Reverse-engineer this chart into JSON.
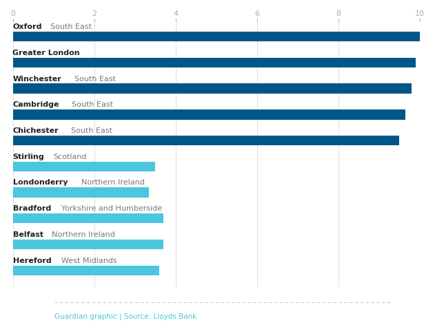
{
  "categories": [
    [
      "Oxford",
      "South East"
    ],
    [
      "Greater London",
      ""
    ],
    [
      "Winchester",
      "South East"
    ],
    [
      "Cambridge",
      "South East"
    ],
    [
      "Chichester",
      "South East"
    ],
    [
      "Stirling",
      "Scotland"
    ],
    [
      "Londonderry",
      "Northern Ireland"
    ],
    [
      "Bradford",
      "Yorkshire and Humberside"
    ],
    [
      "Belfast",
      "Northern Ireland"
    ],
    [
      "Hereford",
      "West Midlands"
    ]
  ],
  "values": [
    10.0,
    9.9,
    9.8,
    9.65,
    9.5,
    3.5,
    3.35,
    3.7,
    3.7,
    3.6
  ],
  "dark_bar_color": "#005689",
  "light_bar_color": "#4bc6df",
  "dark_threshold": 5.0,
  "xlim": [
    0,
    10
  ],
  "xticks": [
    0,
    2,
    4,
    6,
    8,
    10
  ],
  "footer_text": "Guardian graphic | Source: Lloyds Bank",
  "footer_color": "#4bc6df",
  "label_bold_color": "#222222",
  "label_regular_color": "#777777",
  "background_color": "#ffffff",
  "bar_height": 0.38,
  "label_fontsize": 8.0,
  "tick_fontsize": 8.0
}
